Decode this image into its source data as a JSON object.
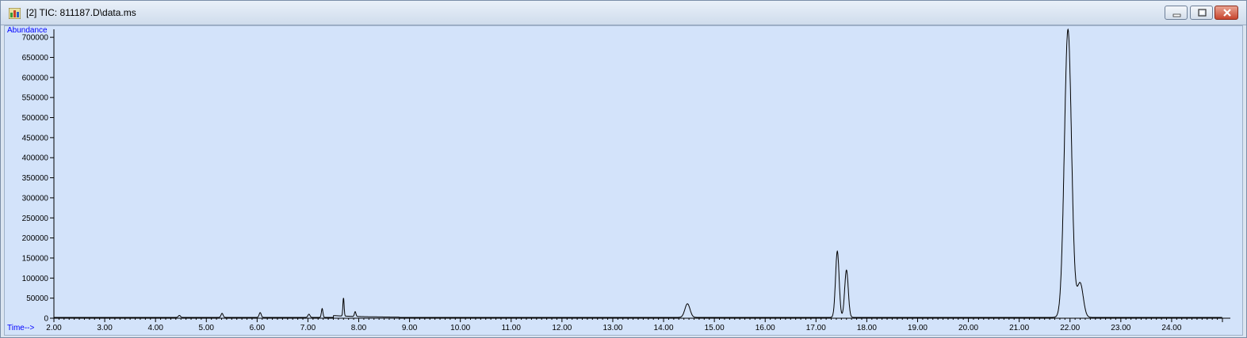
{
  "window": {
    "title": "[2] TIC: 811187.D\\data.ms",
    "icon": "chromatogram-app-icon",
    "controls": [
      "minimize-icon",
      "maximize-icon",
      "close-icon"
    ]
  },
  "chart_data": {
    "type": "line",
    "ylabel": "Abundance",
    "xlabel": "Time-->",
    "xlim": [
      2.0,
      25.0
    ],
    "ylim": [
      0,
      720000
    ],
    "x_ticks": [
      "2.00",
      "3.00",
      "4.00",
      "5.00",
      "6.00",
      "7.00",
      "8.00",
      "9.00",
      "10.00",
      "11.00",
      "12.00",
      "13.00",
      "14.00",
      "15.00",
      "16.00",
      "17.00",
      "18.00",
      "19.00",
      "20.00",
      "21.00",
      "22.00",
      "23.00",
      "24.00"
    ],
    "y_ticks": [
      "0",
      "50000",
      "100000",
      "150000",
      "200000",
      "250000",
      "300000",
      "350000",
      "400000",
      "450000",
      "500000",
      "550000",
      "600000",
      "650000",
      "700000"
    ],
    "baseline": 2000,
    "peaks": [
      {
        "time": 4.47,
        "abundance": 5000,
        "width": 0.02
      },
      {
        "time": 5.31,
        "abundance": 10000,
        "width": 0.02
      },
      {
        "time": 6.06,
        "abundance": 12000,
        "width": 0.02
      },
      {
        "time": 7.02,
        "abundance": 8000,
        "width": 0.02
      },
      {
        "time": 7.28,
        "abundance": 22000,
        "width": 0.015
      },
      {
        "time": 7.7,
        "abundance": 45000,
        "width": 0.012
      },
      {
        "time": 7.93,
        "abundance": 12000,
        "width": 0.015
      },
      {
        "time": 14.47,
        "abundance": 34000,
        "width": 0.05
      },
      {
        "time": 17.42,
        "abundance": 165000,
        "width": 0.035
      },
      {
        "time": 17.6,
        "abundance": 118000,
        "width": 0.035
      },
      {
        "time": 21.96,
        "abundance": 718000,
        "width": 0.07
      },
      {
        "time": 22.2,
        "abundance": 85000,
        "width": 0.06
      }
    ],
    "line_color": "#000000",
    "background_color": "#d3e3fa",
    "label_color": "#0000ff"
  }
}
